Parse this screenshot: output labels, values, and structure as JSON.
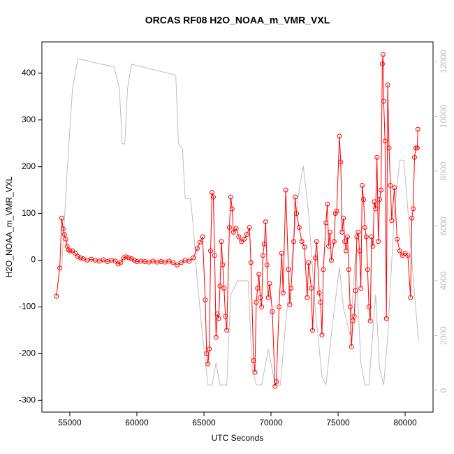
{
  "chart_data": {
    "type": "line",
    "title": "ORCAS RF08 H2O_NOAA_m_VMR_VXL",
    "x_label": "UTC Seconds",
    "y_label": "H2O_NOAA_m_VMR_VXL",
    "xlim": [
      52920,
      82080
    ],
    "ylim": [
      -325,
      467
    ],
    "y2lim": [
      -790,
      12713
    ],
    "xticks": [
      55000,
      60000,
      65000,
      70000,
      75000,
      80000
    ],
    "yticks": [
      -300,
      -200,
      -100,
      0,
      100,
      200,
      300,
      400
    ],
    "y2ticks": [
      0,
      2000,
      4000,
      6000,
      8000,
      10000,
      12000
    ],
    "axis_color_y2": "#bebebe",
    "series": [
      {
        "color": "#bebebe",
        "axis": "y2",
        "markers": false,
        "x": [
          54400,
          54800,
          55200,
          55600,
          58300,
          58700,
          58900,
          59100,
          59300,
          59600,
          62900,
          63100,
          63400,
          63600,
          64000,
          64200,
          64500,
          65000,
          65300,
          65600,
          65900,
          66200,
          66700,
          67000,
          67500,
          68300,
          68600,
          68900,
          69300,
          69800,
          70300,
          70700,
          71100,
          71600,
          72000,
          72400,
          72800,
          73300,
          73800,
          74100,
          74600,
          75100,
          75400,
          75900,
          76300,
          76700,
          77000,
          77300,
          77800,
          78100,
          78400,
          78700,
          79200,
          79600,
          79900,
          80300,
          80700,
          81000
        ],
        "values": [
          4500,
          8000,
          11000,
          12100,
          11800,
          11000,
          9000,
          9000,
          11000,
          11900,
          11500,
          9000,
          8800,
          7000,
          7000,
          6000,
          4000,
          1500,
          200,
          200,
          1000,
          200,
          200,
          3500,
          4000,
          4000,
          800,
          200,
          200,
          1500,
          200,
          200,
          2500,
          5000,
          7000,
          8200,
          6500,
          3000,
          500,
          200,
          2500,
          4500,
          3000,
          2000,
          5000,
          1000,
          200,
          200,
          3500,
          800,
          200,
          2000,
          6500,
          8400,
          8400,
          6000,
          3500,
          1800
        ]
      },
      {
        "color": "#ff0000",
        "axis": "y",
        "markers": true,
        "x": [
          54000,
          54250,
          54400,
          54500,
          54600,
          54700,
          54800,
          54900,
          55000,
          55200,
          55400,
          55600,
          55800,
          56000,
          56300,
          56600,
          56900,
          57200,
          57500,
          57800,
          58100,
          58400,
          58600,
          58800,
          59000,
          59200,
          59400,
          59600,
          59800,
          60000,
          60300,
          60600,
          60900,
          61200,
          61500,
          61800,
          62100,
          62400,
          62700,
          63000,
          63300,
          63600,
          63900,
          64200,
          64500,
          64700,
          64900,
          65100,
          65200,
          65300,
          65400,
          65500,
          65600,
          65700,
          65800,
          65900,
          66000,
          66100,
          66200,
          66300,
          66400,
          66500,
          66600,
          66700,
          66900,
          67000,
          67100,
          67200,
          67400,
          67600,
          67800,
          68000,
          68200,
          68400,
          68500,
          68700,
          68800,
          68900,
          69000,
          69100,
          69200,
          69300,
          69400,
          69500,
          69600,
          69700,
          69800,
          69900,
          70100,
          70300,
          70400,
          70600,
          70800,
          70900,
          71100,
          71300,
          71400,
          71500,
          71700,
          71800,
          71900,
          72100,
          72300,
          72500,
          72700,
          72800,
          73000,
          73100,
          73300,
          73400,
          73600,
          73700,
          73800,
          73900,
          74100,
          74200,
          74300,
          74400,
          74500,
          74700,
          74800,
          74900,
          75100,
          75200,
          75300,
          75400,
          75500,
          75600,
          75700,
          75800,
          75900,
          76000,
          76100,
          76200,
          76300,
          76400,
          76500,
          76600,
          76700,
          76800,
          76900,
          77000,
          77100,
          77200,
          77300,
          77400,
          77500,
          77600,
          77700,
          77800,
          77900,
          78000,
          78100,
          78200,
          78300,
          78350,
          78400,
          78500,
          78600,
          78700,
          78800,
          78900,
          79000,
          79200,
          79400,
          79600,
          79800,
          80000,
          80200,
          80400,
          80500,
          80600,
          80700,
          80800,
          80900,
          80950
        ],
        "values": [
          -77,
          -17,
          90,
          67,
          55,
          45,
          30,
          22,
          20,
          20,
          15,
          8,
          5,
          3,
          0,
          2,
          0,
          -2,
          1,
          -3,
          0,
          -2,
          -8,
          -5,
          5,
          7,
          5,
          3,
          0,
          -3,
          -2,
          -3,
          -4,
          -2,
          -4,
          -3,
          -4,
          -2,
          -5,
          -10,
          -5,
          0,
          -2,
          5,
          25,
          38,
          50,
          -85,
          -200,
          -222,
          -190,
          20,
          145,
          135,
          10,
          -165,
          -115,
          -125,
          -55,
          40,
          -10,
          -60,
          -120,
          -150,
          70,
          135,
          110,
          60,
          68,
          50,
          40,
          45,
          55,
          70,
          -5,
          -215,
          -240,
          -90,
          -60,
          -30,
          -80,
          -100,
          10,
          35,
          82,
          -10,
          -80,
          -50,
          -110,
          -270,
          -260,
          -100,
          15,
          -70,
          150,
          -20,
          -95,
          -60,
          40,
          135,
          100,
          70,
          40,
          28,
          -80,
          -5,
          -60,
          -150,
          5,
          40,
          -70,
          -90,
          -160,
          -20,
          80,
          120,
          30,
          60,
          0,
          40,
          100,
          105,
          265,
          210,
          60,
          90,
          40,
          20,
          50,
          -20,
          -100,
          -185,
          -130,
          -120,
          -65,
          50,
          60,
          20,
          -60,
          160,
          130,
          70,
          50,
          -20,
          -100,
          -130,
          50,
          30,
          125,
          110,
          220,
          40,
          130,
          150,
          420,
          440,
          340,
          255,
          -125,
          375,
          240,
          160,
          85,
          155,
          45,
          20,
          10,
          15,
          10,
          -80,
          90,
          110,
          220,
          240,
          240,
          280
        ]
      }
    ]
  }
}
